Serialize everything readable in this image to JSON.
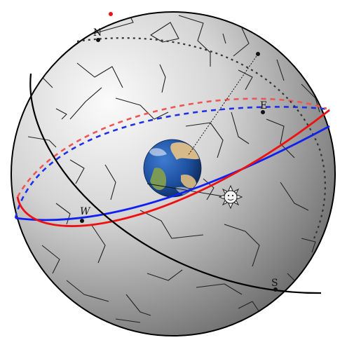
{
  "labels": {
    "north": "N",
    "east": "E",
    "south": "S",
    "west": "W"
  },
  "colors": {
    "sphere_light": "#fbfbfb",
    "sphere_mid": "#c9c9c9",
    "sphere_dark": "#707070",
    "celestial_equator": "#1020f0",
    "ecliptic": "#ee1111",
    "meridian": "#000000",
    "horizon_dotted": "#333333",
    "constellation_lines": "#222222",
    "ocean": "#1d4f9e",
    "land": "#d7b98a",
    "sun": "#f2f2f2"
  },
  "icons": {
    "earth": "earth-icon",
    "sun": "sun-face-icon"
  }
}
